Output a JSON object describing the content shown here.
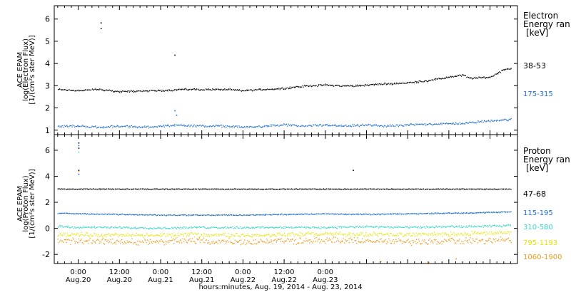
{
  "time_axis": {
    "tick_times": [
      "0:00",
      "12:00",
      "0:00",
      "12:00",
      "0:00",
      "12:00",
      "0:00"
    ],
    "tick_dates": [
      "Aug.20",
      "Aug.20",
      "Aug.21",
      "Aug.21",
      "Aug.22",
      "Aug.22",
      "Aug.23"
    ],
    "xlabel": "hours:minutes, Aug. 19, 2014 - Aug. 23, 2014"
  },
  "chart_data": [
    {
      "type": "scatter",
      "panel": "electron",
      "ylabel_lines": [
        "ACE EPAM",
        "log(Electron Flux)",
        "[1/(cm²s ster MeV)]"
      ],
      "ylim": [
        0.8,
        6.6
      ],
      "yticks": [
        1,
        2,
        3,
        4,
        5,
        6
      ],
      "x_unit": "hours after Aug.20 0:00",
      "xlim": [
        -7,
        128
      ],
      "legend_title": [
        "Electron",
        "Energy ran"
      ],
      "legend_unit": "[keV]",
      "series": [
        {
          "name": "38-53",
          "color": "#000000",
          "x": [
            -6,
            0,
            6,
            12,
            18,
            24,
            30,
            36,
            42,
            48,
            54,
            60,
            66,
            72,
            78,
            84,
            90,
            96,
            102,
            108,
            112,
            114,
            120,
            124,
            126
          ],
          "y": [
            2.85,
            2.8,
            2.85,
            2.75,
            2.78,
            2.8,
            2.85,
            2.85,
            2.85,
            2.8,
            2.85,
            2.9,
            3.0,
            3.05,
            3.0,
            3.05,
            3.1,
            3.15,
            3.25,
            3.4,
            3.5,
            3.35,
            3.4,
            3.75,
            3.8
          ],
          "outliers": [
            [
              6.5,
              5.85
            ],
            [
              6.5,
              5.6
            ],
            [
              28,
              4.4
            ]
          ]
        },
        {
          "name": "175-315",
          "color": "#1f6fd0",
          "x": [
            -6,
            0,
            6,
            12,
            18,
            24,
            30,
            36,
            42,
            48,
            54,
            60,
            66,
            72,
            78,
            84,
            90,
            96,
            102,
            108,
            114,
            120,
            126
          ],
          "y": [
            1.2,
            1.2,
            1.15,
            1.2,
            1.15,
            1.2,
            1.25,
            1.2,
            1.2,
            1.15,
            1.2,
            1.25,
            1.2,
            1.25,
            1.2,
            1.25,
            1.2,
            1.25,
            1.3,
            1.3,
            1.35,
            1.45,
            1.5
          ],
          "outliers": [
            [
              28,
              1.9
            ],
            [
              28.5,
              1.7
            ]
          ]
        }
      ]
    },
    {
      "type": "scatter",
      "panel": "proton",
      "ylabel_lines": [
        "ACE EPAM",
        "log(Proton Flux)",
        "[1/(cm²s ster MeV)]"
      ],
      "ylim": [
        -2.7,
        7.2
      ],
      "yticks": [
        -2,
        0,
        2,
        4,
        6
      ],
      "x_unit": "hours after Aug.20 0:00",
      "xlim": [
        -7,
        128
      ],
      "legend_title": [
        "Proton",
        "Energy ran"
      ],
      "legend_unit": "[keV]",
      "series": [
        {
          "name": "47-68",
          "color": "#000000",
          "x": [
            -6,
            0,
            12,
            24,
            36,
            48,
            60,
            72,
            84,
            96,
            108,
            120,
            126
          ],
          "y": [
            3.05,
            3.05,
            3.05,
            3.05,
            3.05,
            3.05,
            3.05,
            3.05,
            3.05,
            3.05,
            3.05,
            3.05,
            3.05
          ],
          "outliers": [
            [
              0,
              6.6
            ],
            [
              0,
              6.2
            ],
            [
              0,
              4.5
            ],
            [
              80,
              4.5
            ]
          ]
        },
        {
          "name": "115-195",
          "color": "#1f6fd0",
          "x": [
            -6,
            0,
            12,
            24,
            36,
            48,
            60,
            72,
            84,
            96,
            108,
            120,
            126
          ],
          "y": [
            1.2,
            1.15,
            1.1,
            1.05,
            1.05,
            1.05,
            1.1,
            1.15,
            1.1,
            1.15,
            1.2,
            1.25,
            1.3
          ],
          "outliers": [
            [
              0,
              6.4
            ],
            [
              0,
              4.2
            ]
          ]
        },
        {
          "name": "310-580",
          "color": "#3ad6c8",
          "x": [
            -6,
            0,
            12,
            24,
            36,
            48,
            60,
            72,
            84,
            96,
            108,
            120,
            126
          ],
          "y": [
            0.2,
            0.1,
            0.1,
            0.05,
            0.1,
            0.1,
            0.1,
            0.1,
            0.15,
            0.1,
            0.15,
            0.2,
            0.25
          ],
          "outliers": [
            [
              0,
              5.9
            ]
          ]
        },
        {
          "name": "795-1193",
          "color": "#e6e600",
          "x": [
            -6,
            0,
            12,
            24,
            36,
            48,
            60,
            72,
            84,
            96,
            108,
            120,
            126
          ],
          "y": [
            -0.4,
            -0.45,
            -0.5,
            -0.5,
            -0.45,
            -0.5,
            -0.45,
            -0.4,
            -0.45,
            -0.45,
            -0.4,
            -0.35,
            -0.3
          ],
          "outliers": []
        },
        {
          "name": "1060-1900",
          "color": "#f09a1a",
          "x": [
            -6,
            0,
            12,
            24,
            36,
            48,
            60,
            72,
            84,
            96,
            108,
            120,
            126
          ],
          "y": [
            -0.9,
            -0.95,
            -1.0,
            -1.0,
            -0.95,
            -1.0,
            -0.95,
            -0.9,
            -0.95,
            -1.0,
            -0.95,
            -0.9,
            -0.85
          ],
          "outliers": [
            [
              0,
              4.4
            ],
            [
              88,
              -2.5
            ],
            [
              102,
              -2.6
            ],
            [
              110,
              -2.3
            ]
          ]
        }
      ]
    }
  ]
}
